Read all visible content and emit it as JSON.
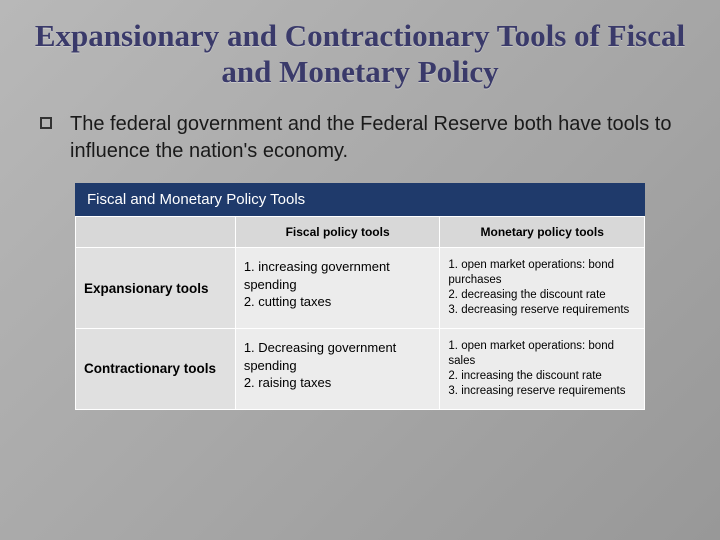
{
  "title": "Expansionary and Contractionary Tools of Fiscal and Monetary Policy",
  "bullet": "The federal government and the Federal Reserve both have tools to influence the nation's economy.",
  "table": {
    "caption": "Fiscal and Monetary Policy Tools",
    "col1": "Fiscal policy tools",
    "col2": "Monetary policy tools",
    "rows": [
      {
        "label": "Expansionary tools",
        "fiscal": "1. increasing government spending\n2. cutting taxes",
        "monetary": "1. open market operations: bond purchases\n2. decreasing the discount rate\n3. decreasing reserve requirements"
      },
      {
        "label": "Contractionary tools",
        "fiscal": "1. Decreasing government spending\n2. raising taxes",
        "monetary": "1. open market operations: bond sales\n2. increasing the discount rate\n3. increasing reserve requirements"
      }
    ]
  },
  "colors": {
    "title_color": "#3a3a6a",
    "table_header_bg": "#1f3a6b",
    "slide_bg_start": "#b8b8b8",
    "slide_bg_end": "#989898"
  }
}
